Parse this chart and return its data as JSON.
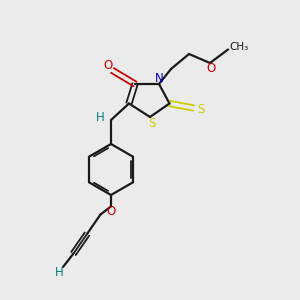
{
  "bg_color": "#ebebeb",
  "bond_color": "#1a1a1a",
  "S_color": "#cccc00",
  "N_color": "#0000cc",
  "O_color": "#cc0000",
  "teal_color": "#008080",
  "fig_size": [
    3.0,
    3.0
  ],
  "dpi": 100,
  "xlim": [
    0,
    10
  ],
  "ylim": [
    0,
    10
  ]
}
